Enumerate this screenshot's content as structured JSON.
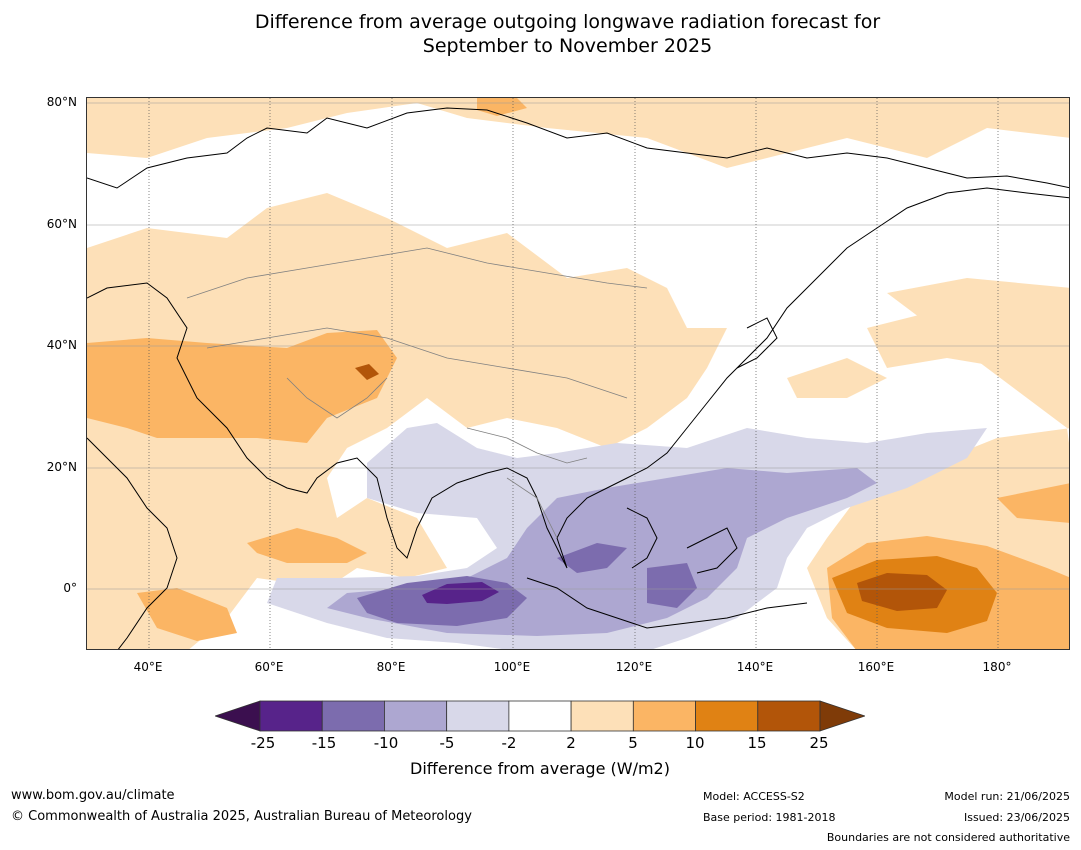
{
  "title_line1": "Difference from average outgoing longwave radiation forecast for",
  "title_line2": "September to November 2025",
  "lat_labels": [
    "80°N",
    "60°N",
    "40°N",
    "20°N",
    "0°"
  ],
  "lon_labels": [
    "40°E",
    "60°E",
    "80°E",
    "100°E",
    "120°E",
    "140°E",
    "160°E",
    "180°"
  ],
  "colorbar": {
    "ticks": [
      "-25",
      "-15",
      "-10",
      "-5",
      "-2",
      "2",
      "5",
      "10",
      "15",
      "25"
    ],
    "colors": [
      "#3b0f4f",
      "#57238a",
      "#7c6cae",
      "#ada7d1",
      "#d8d8e9",
      "#ffffff",
      "#fde0b8",
      "#fbb564",
      "#e08214",
      "#b25509",
      "#7f3b08"
    ],
    "label": "Difference from average (W/m2)"
  },
  "footer": {
    "website": "www.bom.gov.au/climate",
    "copyright": "© Commonwealth of Australia 2025, Australian Bureau of Meteorology",
    "model": "Model: ACCESS-S2",
    "base_period": "Base period: 1981-2018",
    "model_run": "Model run: 21/06/2025",
    "issued": "Issued: 23/06/2025",
    "boundaries_note": "Boundaries are not considered authoritative"
  }
}
